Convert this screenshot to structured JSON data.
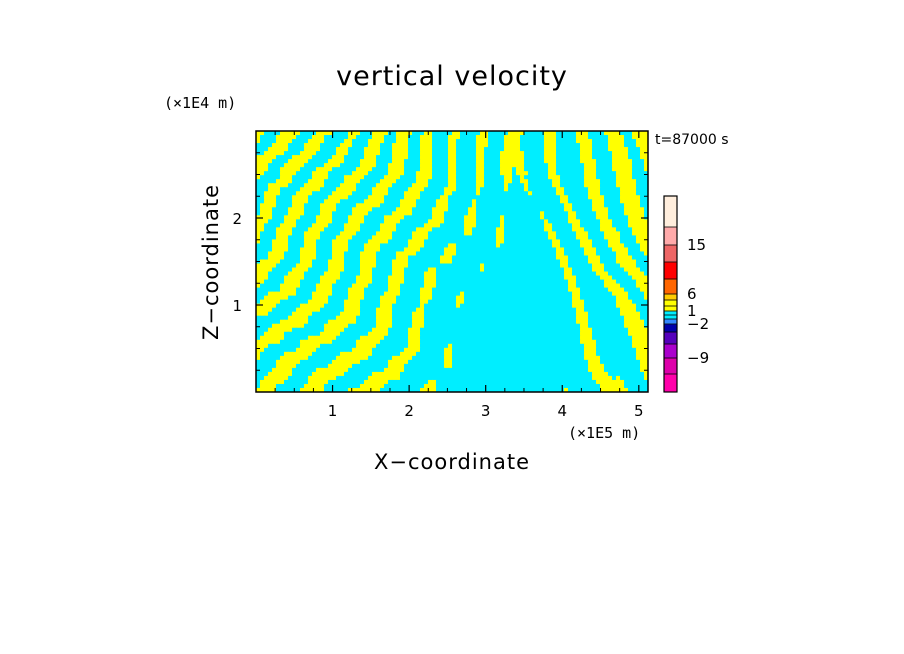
{
  "chart_data": {
    "type": "heatmap",
    "title": "vertical velocity",
    "xlabel": "X−coordinate",
    "ylabel": "Z−coordinate",
    "x_unit": "(×1E5 m)",
    "y_unit": "(×1E4 m)",
    "time_label": "t=87000 s",
    "xlim": [
      0,
      5.12
    ],
    "ylim": [
      0,
      3.0
    ],
    "x_ticks": [
      1,
      2,
      3,
      4,
      5
    ],
    "x_tick_labels": [
      "1",
      "2",
      "3",
      "4",
      "5"
    ],
    "y_ticks": [
      1,
      2
    ],
    "y_tick_labels": [
      "1",
      "2"
    ],
    "colorbar": {
      "labels": [
        "15",
        "6",
        "1",
        "−2",
        "−9"
      ],
      "label_values": [
        15,
        6,
        1,
        -2,
        -9
      ],
      "levels": [
        -15,
        -12,
        -9,
        -6,
        -4,
        -2,
        -1,
        0,
        1,
        2,
        3,
        6,
        9,
        12,
        15,
        20
      ],
      "colors": [
        "#ff00aa",
        "#dd00aa",
        "#aa00cc",
        "#5500bb",
        "#0000aa",
        "#3388ff",
        "#00eeff",
        "#00eeff",
        "#ffff00",
        "#ffff00",
        "#ffcc00",
        "#ff6600",
        "#ff0000",
        "#ee6666",
        "#ffaaaa",
        "#ffeedd"
      ]
    },
    "field": {
      "positive_color": "#ffff00",
      "negative_color": "#00eeff",
      "band_direction": "oblique rising streaks tilted away from the plume",
      "plume_center_x": 3.4,
      "dominant_range_x": [
        2.1,
        4.6
      ]
    }
  }
}
